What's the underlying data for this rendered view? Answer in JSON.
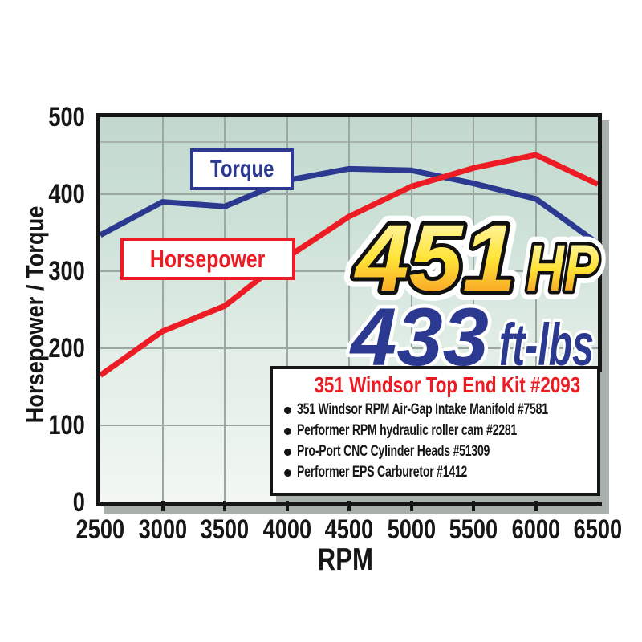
{
  "chart": {
    "y_axis_title": "Horsepower / Torque",
    "x_axis_title": "RPM",
    "y_ticks": [
      "500",
      "400",
      "300",
      "200",
      "100",
      "0"
    ],
    "x_ticks": [
      "2500",
      "3000",
      "3500",
      "4000",
      "4500",
      "5000",
      "5500",
      "6000",
      "6500"
    ]
  },
  "legend": {
    "torque_label": "Torque",
    "horsepower_label": "Horsepower"
  },
  "callouts": {
    "hp_number": "451",
    "hp_unit": "HP",
    "torque_number": "433",
    "torque_unit": "ft-lbs"
  },
  "info_box": {
    "title": "351 Windsor Top End Kit #2093",
    "items": [
      "351 Windsor RPM Air-Gap Intake Manifold #7581",
      "Performer RPM hydraulic roller cam #2281",
      "Pro-Port CNC Cylinder Heads #51309",
      "Performer EPS Carburetor #1412"
    ]
  },
  "colors": {
    "torque_line": "#2b3990",
    "horsepower_line": "#ed1c24",
    "gold_gradient_top": "#fffbd0",
    "gold_gradient_mid": "#ffe437",
    "gold_gradient_bottom": "#f6871f",
    "plot_bg_top": "#c2d8ce",
    "plot_bg_bottom": "#f2f7f2",
    "gridline": "#9da7a2"
  },
  "chart_data": {
    "type": "line",
    "x": [
      2500,
      3000,
      3500,
      4000,
      4500,
      5000,
      5500,
      6000,
      6500
    ],
    "series": [
      {
        "name": "Torque",
        "color": "#2b3990",
        "values": [
          347,
          390,
          384,
          418,
          433,
          431,
          414,
          394,
          336
        ]
      },
      {
        "name": "Horsepower",
        "color": "#ed1c24",
        "values": [
          165,
          222,
          255,
          318,
          371,
          410,
          434,
          451,
          413
        ]
      }
    ],
    "title": "",
    "xlabel": "RPM",
    "ylabel": "Horsepower / Torque",
    "xlim": [
      2500,
      6500
    ],
    "ylim": [
      0,
      500
    ],
    "grid": true,
    "peak_horsepower": "451 HP",
    "peak_torque": "433 ft-lbs"
  }
}
